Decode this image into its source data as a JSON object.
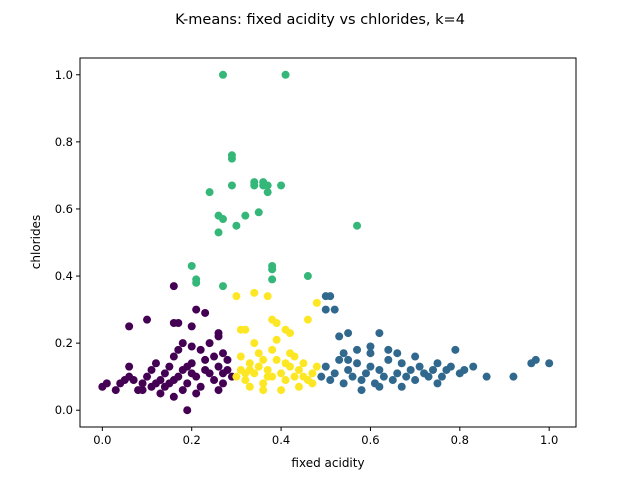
{
  "chart_data": {
    "type": "scatter",
    "title": "K-means: fixed acidity vs chlorides, k=4",
    "xlabel": "fixed acidity",
    "ylabel": "chlorides",
    "xlim": [
      -0.05,
      1.06
    ],
    "ylim": [
      -0.05,
      1.05
    ],
    "xticks": [
      "0.0",
      "0.2",
      "0.4",
      "0.6",
      "0.8",
      "1.0"
    ],
    "yticks": [
      "0.0",
      "0.2",
      "0.4",
      "0.6",
      "0.8",
      "1.0"
    ],
    "grid": false,
    "legend": "none",
    "series": [
      {
        "color": "#440154",
        "points": [
          [
            0.0,
            0.07
          ],
          [
            0.01,
            0.08
          ],
          [
            0.03,
            0.06
          ],
          [
            0.05,
            0.09
          ],
          [
            0.06,
            0.1
          ],
          [
            0.06,
            0.13
          ],
          [
            0.07,
            0.09
          ],
          [
            0.08,
            0.06
          ],
          [
            0.09,
            0.08
          ],
          [
            0.1,
            0.1
          ],
          [
            0.11,
            0.12
          ],
          [
            0.12,
            0.08
          ],
          [
            0.13,
            0.09
          ],
          [
            0.14,
            0.11
          ],
          [
            0.14,
            0.07
          ],
          [
            0.15,
            0.13
          ],
          [
            0.16,
            0.09
          ],
          [
            0.16,
            0.16
          ],
          [
            0.17,
            0.1
          ],
          [
            0.18,
            0.12
          ],
          [
            0.18,
            0.06
          ],
          [
            0.19,
            0.08
          ],
          [
            0.2,
            0.14
          ],
          [
            0.21,
            0.1
          ],
          [
            0.22,
            0.07
          ],
          [
            0.23,
            0.15
          ],
          [
            0.24,
            0.11
          ],
          [
            0.25,
            0.09
          ],
          [
            0.26,
            0.13
          ],
          [
            0.27,
            0.17
          ],
          [
            0.27,
            0.08
          ],
          [
            0.28,
            0.12
          ],
          [
            0.29,
            0.1
          ],
          [
            0.2,
            0.19
          ],
          [
            0.22,
            0.18
          ],
          [
            0.24,
            0.2
          ],
          [
            0.21,
            0.05
          ],
          [
            0.17,
            0.18
          ],
          [
            0.16,
            0.04
          ],
          [
            0.13,
            0.05
          ],
          [
            0.26,
            0.06
          ],
          [
            0.28,
            0.15
          ],
          [
            0.12,
            0.14
          ],
          [
            0.18,
            0.2
          ],
          [
            0.25,
            0.16
          ],
          [
            0.19,
            0.13
          ],
          [
            0.23,
            0.12
          ],
          [
            0.15,
            0.08
          ],
          [
            0.2,
            0.11
          ],
          [
            0.27,
            0.11
          ],
          [
            0.06,
            0.25
          ],
          [
            0.1,
            0.27
          ],
          [
            0.16,
            0.26
          ],
          [
            0.17,
            0.26
          ],
          [
            0.16,
            0.37
          ],
          [
            0.2,
            0.25
          ],
          [
            0.21,
            0.3
          ],
          [
            0.23,
            0.29
          ],
          [
            0.26,
            0.23
          ],
          [
            0.26,
            0.22
          ],
          [
            0.19,
            0.0
          ],
          [
            0.09,
            0.06
          ],
          [
            0.04,
            0.08
          ],
          [
            0.11,
            0.07
          ]
        ]
      },
      {
        "color": "#31688e",
        "points": [
          [
            0.49,
            0.1
          ],
          [
            0.5,
            0.13
          ],
          [
            0.51,
            0.09
          ],
          [
            0.52,
            0.11
          ],
          [
            0.53,
            0.15
          ],
          [
            0.54,
            0.08
          ],
          [
            0.55,
            0.12
          ],
          [
            0.56,
            0.1
          ],
          [
            0.57,
            0.14
          ],
          [
            0.58,
            0.09
          ],
          [
            0.59,
            0.11
          ],
          [
            0.6,
            0.13
          ],
          [
            0.61,
            0.08
          ],
          [
            0.62,
            0.12
          ],
          [
            0.63,
            0.1
          ],
          [
            0.64,
            0.15
          ],
          [
            0.65,
            0.09
          ],
          [
            0.66,
            0.11
          ],
          [
            0.67,
            0.14
          ],
          [
            0.68,
            0.1
          ],
          [
            0.69,
            0.12
          ],
          [
            0.7,
            0.09
          ],
          [
            0.71,
            0.13
          ],
          [
            0.72,
            0.11
          ],
          [
            0.73,
            0.1
          ],
          [
            0.74,
            0.12
          ],
          [
            0.75,
            0.14
          ],
          [
            0.76,
            0.1
          ],
          [
            0.77,
            0.12
          ],
          [
            0.78,
            0.13
          ],
          [
            0.8,
            0.11
          ],
          [
            0.81,
            0.12
          ],
          [
            0.83,
            0.13
          ],
          [
            0.86,
            0.1
          ],
          [
            0.92,
            0.1
          ],
          [
            0.96,
            0.14
          ],
          [
            0.97,
            0.15
          ],
          [
            1.0,
            0.14
          ],
          [
            0.5,
            0.34
          ],
          [
            0.51,
            0.34
          ],
          [
            0.5,
            0.3
          ],
          [
            0.52,
            0.3
          ],
          [
            0.55,
            0.23
          ],
          [
            0.53,
            0.22
          ],
          [
            0.62,
            0.23
          ],
          [
            0.6,
            0.19
          ],
          [
            0.57,
            0.18
          ],
          [
            0.66,
            0.17
          ],
          [
            0.7,
            0.16
          ],
          [
            0.79,
            0.18
          ],
          [
            0.64,
            0.18
          ],
          [
            0.54,
            0.17
          ],
          [
            0.58,
            0.06
          ],
          [
            0.62,
            0.07
          ],
          [
            0.67,
            0.07
          ],
          [
            0.75,
            0.08
          ],
          [
            0.55,
            0.15
          ],
          [
            0.6,
            0.17
          ]
        ]
      },
      {
        "color": "#35b779",
        "points": [
          [
            0.27,
            1.0
          ],
          [
            0.41,
            1.0
          ],
          [
            0.29,
            0.76
          ],
          [
            0.29,
            0.75
          ],
          [
            0.24,
            0.65
          ],
          [
            0.29,
            0.67
          ],
          [
            0.34,
            0.67
          ],
          [
            0.36,
            0.68
          ],
          [
            0.36,
            0.67
          ],
          [
            0.37,
            0.67
          ],
          [
            0.4,
            0.67
          ],
          [
            0.26,
            0.58
          ],
          [
            0.27,
            0.57
          ],
          [
            0.3,
            0.55
          ],
          [
            0.32,
            0.58
          ],
          [
            0.35,
            0.59
          ],
          [
            0.26,
            0.53
          ],
          [
            0.57,
            0.55
          ],
          [
            0.38,
            0.42
          ],
          [
            0.38,
            0.43
          ],
          [
            0.2,
            0.43
          ],
          [
            0.21,
            0.39
          ],
          [
            0.21,
            0.38
          ],
          [
            0.27,
            0.37
          ],
          [
            0.46,
            0.4
          ],
          [
            0.38,
            0.39
          ],
          [
            0.34,
            0.68
          ],
          [
            0.37,
            0.65
          ]
        ]
      },
      {
        "color": "#fde725",
        "points": [
          [
            0.3,
            0.1
          ],
          [
            0.31,
            0.12
          ],
          [
            0.32,
            0.09
          ],
          [
            0.33,
            0.14
          ],
          [
            0.34,
            0.11
          ],
          [
            0.35,
            0.13
          ],
          [
            0.36,
            0.08
          ],
          [
            0.37,
            0.12
          ],
          [
            0.38,
            0.1
          ],
          [
            0.39,
            0.15
          ],
          [
            0.4,
            0.11
          ],
          [
            0.41,
            0.09
          ],
          [
            0.42,
            0.13
          ],
          [
            0.43,
            0.1
          ],
          [
            0.44,
            0.12
          ],
          [
            0.45,
            0.14
          ],
          [
            0.46,
            0.09
          ],
          [
            0.47,
            0.11
          ],
          [
            0.48,
            0.13
          ],
          [
            0.35,
            0.17
          ],
          [
            0.38,
            0.18
          ],
          [
            0.42,
            0.17
          ],
          [
            0.31,
            0.16
          ],
          [
            0.44,
            0.07
          ],
          [
            0.33,
            0.07
          ],
          [
            0.36,
            0.06
          ],
          [
            0.4,
            0.06
          ],
          [
            0.34,
            0.2
          ],
          [
            0.39,
            0.21
          ],
          [
            0.31,
            0.24
          ],
          [
            0.32,
            0.24
          ],
          [
            0.38,
            0.27
          ],
          [
            0.39,
            0.26
          ],
          [
            0.3,
            0.34
          ],
          [
            0.34,
            0.35
          ],
          [
            0.37,
            0.34
          ],
          [
            0.42,
            0.23
          ],
          [
            0.41,
            0.24
          ],
          [
            0.46,
            0.27
          ],
          [
            0.48,
            0.32
          ],
          [
            0.33,
            0.12
          ],
          [
            0.37,
            0.1
          ],
          [
            0.41,
            0.14
          ],
          [
            0.45,
            0.1
          ],
          [
            0.47,
            0.08
          ],
          [
            0.43,
            0.16
          ],
          [
            0.32,
            0.11
          ],
          [
            0.36,
            0.15
          ]
        ]
      }
    ]
  }
}
